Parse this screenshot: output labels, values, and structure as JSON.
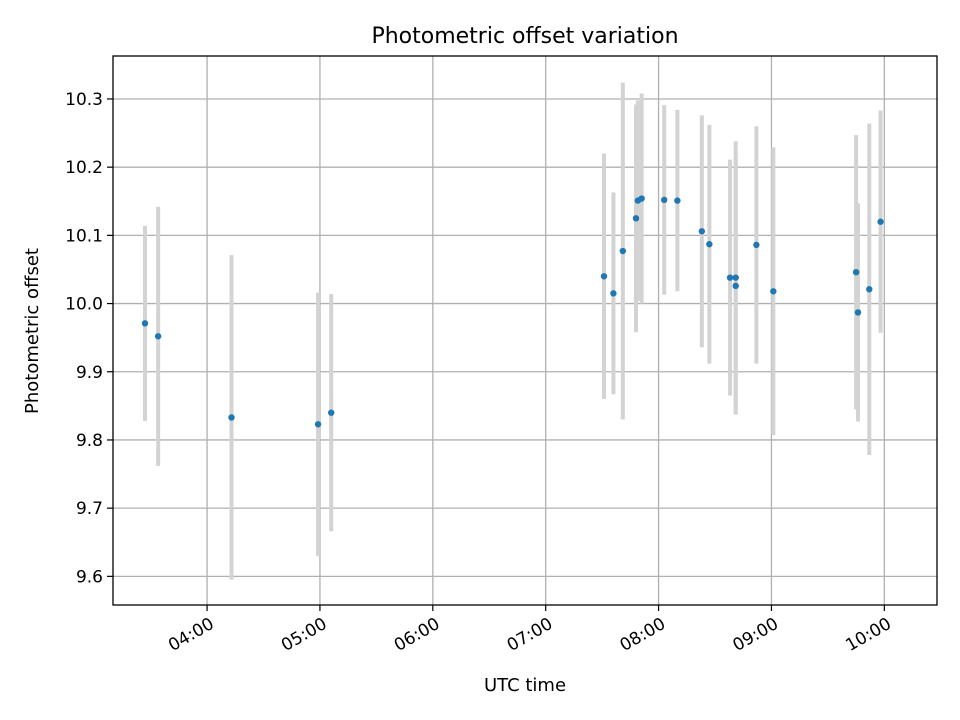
{
  "chart_data": {
    "type": "scatter",
    "title": "Photometric offset variation",
    "xlabel": "UTC time",
    "ylabel": "Photometric offset",
    "x_ticks": [
      "04:00",
      "05:00",
      "06:00",
      "07:00",
      "08:00",
      "09:00",
      "10:00"
    ],
    "y_ticks": [
      "9.6",
      "9.7",
      "9.8",
      "9.9",
      "10.0",
      "10.1",
      "10.2",
      "10.3"
    ],
    "xlim": [
      "03:10",
      "10:28"
    ],
    "ylim": [
      9.558,
      10.363
    ],
    "grid": true,
    "point_color": "#1f77b4",
    "errorbar_color": "#d3d3d3",
    "points": [
      {
        "x": "03:27",
        "y": 9.971,
        "err": 0.143
      },
      {
        "x": "03:34",
        "y": 9.952,
        "err": 0.19
      },
      {
        "x": "04:13",
        "y": 9.833,
        "err": 0.238
      },
      {
        "x": "04:59",
        "y": 9.823,
        "err": 0.193
      },
      {
        "x": "05:06",
        "y": 9.84,
        "err": 0.174
      },
      {
        "x": "07:31",
        "y": 10.04,
        "err": 0.18
      },
      {
        "x": "07:36",
        "y": 10.015,
        "err": 0.148
      },
      {
        "x": "07:41",
        "y": 10.077,
        "err": 0.247
      },
      {
        "x": "07:48",
        "y": 10.125,
        "err": 0.167
      },
      {
        "x": "07:49",
        "y": 10.151,
        "err": 0.147
      },
      {
        "x": "07:51",
        "y": 10.154,
        "err": 0.154
      },
      {
        "x": "08:03",
        "y": 10.152,
        "err": 0.139
      },
      {
        "x": "08:10",
        "y": 10.151,
        "err": 0.133
      },
      {
        "x": "08:23",
        "y": 10.106,
        "err": 0.17
      },
      {
        "x": "08:27",
        "y": 10.087,
        "err": 0.175
      },
      {
        "x": "08:38",
        "y": 10.038,
        "err": 0.173
      },
      {
        "x": "08:41",
        "y": 10.026,
        "err": 0.189
      },
      {
        "x": "08:41",
        "y": 10.038,
        "err": 0.2
      },
      {
        "x": "08:52",
        "y": 10.086,
        "err": 0.174
      },
      {
        "x": "09:01",
        "y": 10.018,
        "err": 0.211
      },
      {
        "x": "09:45",
        "y": 10.046,
        "err": 0.201
      },
      {
        "x": "09:46",
        "y": 9.987,
        "err": 0.16
      },
      {
        "x": "09:52",
        "y": 10.021,
        "err": 0.243
      },
      {
        "x": "09:58",
        "y": 10.12,
        "err": 0.163
      }
    ]
  }
}
